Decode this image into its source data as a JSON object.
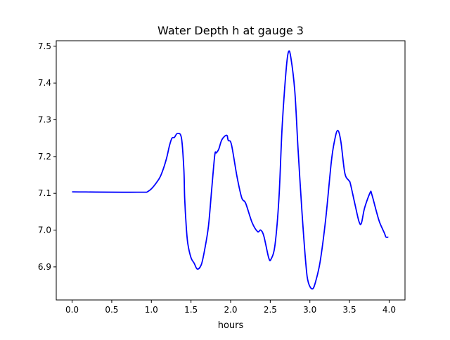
{
  "chart_data": {
    "type": "line",
    "title": "Water Depth h at gauge 3",
    "xlabel": "hours",
    "ylabel": "",
    "xlim": [
      -0.2,
      4.2
    ],
    "ylim": [
      6.81,
      7.515
    ],
    "xticks": [
      0,
      0.5,
      1,
      1.5,
      2,
      2.5,
      3,
      3.5,
      4
    ],
    "xtick_labels": [
      "0.0",
      "0.5",
      "1.0",
      "1.5",
      "2.0",
      "2.5",
      "3.0",
      "3.5",
      "4.0"
    ],
    "yticks": [
      6.9,
      7.0,
      7.1,
      7.2,
      7.3,
      7.4,
      7.5
    ],
    "ytick_labels": [
      "6.9",
      "7.0",
      "7.1",
      "7.2",
      "7.3",
      "7.4",
      "7.5"
    ],
    "grid": false,
    "series": [
      {
        "name": "h",
        "color": "#0000ff",
        "x": [
          0,
          0.82,
          0.97,
          1.09,
          1.14,
          1.19,
          1.23,
          1.26,
          1.29,
          1.33,
          1.38,
          1.41,
          1.42,
          1.44,
          1.46,
          1.5,
          1.54,
          1.58,
          1.63,
          1.67,
          1.72,
          1.76,
          1.8,
          1.82,
          1.85,
          1.89,
          1.95,
          1.97,
          2.01,
          2.08,
          2.14,
          2.19,
          2.27,
          2.34,
          2.38,
          2.42,
          2.48,
          2.51,
          2.56,
          2.61,
          2.65,
          2.7,
          2.73,
          2.76,
          2.81,
          2.85,
          2.9,
          2.95,
          2.98,
          3.03,
          3.07,
          3.13,
          3.2,
          3.27,
          3.31,
          3.35,
          3.39,
          3.44,
          3.49,
          3.51,
          3.57,
          3.62,
          3.65,
          3.69,
          3.76,
          3.78,
          3.84,
          3.88,
          3.94,
          3.96,
          3.99
        ],
        "y": [
          7.104,
          7.103,
          7.107,
          7.137,
          7.16,
          7.194,
          7.231,
          7.25,
          7.252,
          7.263,
          7.25,
          7.165,
          7.088,
          7.01,
          6.963,
          6.925,
          6.91,
          6.894,
          6.906,
          6.944,
          7.01,
          7.108,
          7.204,
          7.21,
          7.22,
          7.246,
          7.258,
          7.244,
          7.233,
          7.146,
          7.088,
          7.073,
          7.021,
          6.996,
          7.0,
          6.983,
          6.925,
          6.921,
          6.96,
          7.088,
          7.281,
          7.435,
          7.485,
          7.469,
          7.377,
          7.223,
          7.05,
          6.906,
          6.858,
          6.84,
          6.858,
          6.915,
          7.031,
          7.185,
          7.242,
          7.271,
          7.242,
          7.156,
          7.135,
          7.127,
          7.069,
          7.023,
          7.019,
          7.06,
          7.102,
          7.098,
          7.05,
          7.021,
          6.992,
          6.981,
          6.981
        ]
      }
    ]
  }
}
